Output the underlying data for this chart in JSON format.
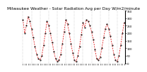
{
  "title": "Milwaukee Weather - Solar Radiation Avg per Day W/m2/minute",
  "line_color": "#dd0000",
  "dot_color": "#000000",
  "background_color": "#ffffff",
  "grid_color": "#999999",
  "y_values": [
    290,
    200,
    250,
    310,
    280,
    230,
    170,
    110,
    60,
    30,
    20,
    50,
    120,
    200,
    280,
    250,
    200,
    140,
    80,
    30,
    10,
    20,
    60,
    130,
    210,
    290,
    260,
    200,
    130,
    70,
    20,
    10,
    50,
    110,
    190,
    270,
    240,
    290,
    280,
    250,
    210,
    160,
    90,
    30,
    20,
    40,
    100,
    170,
    230,
    260,
    230,
    180,
    120,
    60,
    20,
    10,
    50,
    120,
    200,
    270
  ],
  "ylim": [
    0,
    350
  ],
  "yticks": [
    0,
    50,
    100,
    150,
    200,
    250,
    300,
    350
  ],
  "title_fontsize": 4.2,
  "tick_fontsize": 2.8,
  "line_width": 0.55,
  "dot_size": 1.0,
  "grid_every": 5
}
